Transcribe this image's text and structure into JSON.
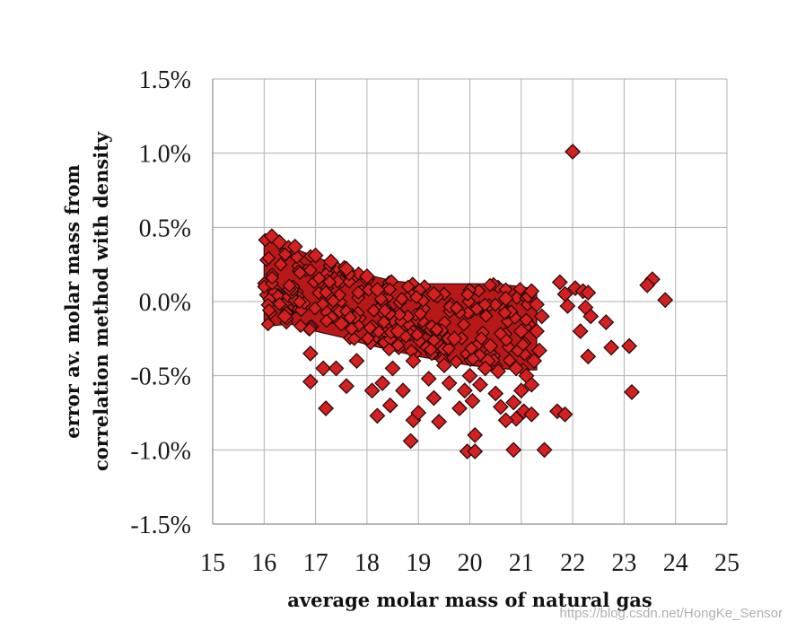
{
  "chart_data": {
    "type": "scatter",
    "title": "",
    "xlabel": "average molar mass of natural gas",
    "ylabel_lines": [
      "error av. molar mass from",
      "correlation method with density"
    ],
    "xlim": [
      15,
      25
    ],
    "ylim": [
      -1.5,
      1.5
    ],
    "x_ticks": [
      15,
      16,
      17,
      18,
      19,
      20,
      21,
      22,
      23,
      24,
      25
    ],
    "x_tick_labels": [
      "15",
      "16",
      "17",
      "18",
      "19",
      "20",
      "21",
      "22",
      "23",
      "24",
      "25"
    ],
    "y_ticks": [
      1.5,
      1.0,
      0.5,
      0.0,
      -0.5,
      -1.0,
      -1.5
    ],
    "y_tick_labels": [
      "1.5%",
      "1.0%",
      "0.5%",
      "0.0%",
      "-0.5%",
      "-1.0%",
      "-1.5%"
    ],
    "grid": true,
    "legend": "none",
    "marker": {
      "shape": "diamond",
      "fill": "#d42020",
      "edge": "#2a0a0a"
    },
    "dense_band": {
      "x_range": [
        16,
        21.3
      ],
      "upper_edge": [
        [
          16.0,
          0.43
        ],
        [
          16.5,
          0.37
        ],
        [
          17.0,
          0.3
        ],
        [
          17.5,
          0.24
        ],
        [
          18.0,
          0.18
        ],
        [
          18.5,
          0.14
        ],
        [
          19.0,
          0.12
        ],
        [
          19.5,
          0.12
        ],
        [
          20.0,
          0.12
        ],
        [
          20.5,
          0.12
        ],
        [
          21.0,
          0.1
        ],
        [
          21.3,
          0.08
        ]
      ],
      "lower_edge": [
        [
          16.0,
          -0.17
        ],
        [
          16.5,
          -0.15
        ],
        [
          17.0,
          -0.2
        ],
        [
          17.5,
          -0.24
        ],
        [
          18.0,
          -0.29
        ],
        [
          18.5,
          -0.33
        ],
        [
          19.0,
          -0.37
        ],
        [
          19.5,
          -0.4
        ],
        [
          20.0,
          -0.43
        ],
        [
          20.5,
          -0.45
        ],
        [
          21.0,
          -0.46
        ],
        [
          21.3,
          -0.46
        ]
      ]
    },
    "points": [
      [
        22.0,
        1.01
      ],
      [
        16.15,
        0.44
      ],
      [
        16.3,
        0.4
      ],
      [
        16.6,
        0.37
      ],
      [
        17.0,
        0.31
      ],
      [
        17.3,
        0.27
      ],
      [
        17.6,
        0.22
      ],
      [
        18.0,
        0.17
      ],
      [
        23.55,
        0.15
      ],
      [
        23.45,
        0.11
      ],
      [
        23.8,
        0.01
      ],
      [
        21.75,
        0.13
      ],
      [
        21.85,
        0.05
      ],
      [
        21.9,
        -0.03
      ],
      [
        22.05,
        0.09
      ],
      [
        22.2,
        0.07
      ],
      [
        22.3,
        0.06
      ],
      [
        22.25,
        -0.04
      ],
      [
        22.35,
        -0.1
      ],
      [
        22.15,
        -0.2
      ],
      [
        22.3,
        -0.37
      ],
      [
        22.65,
        -0.14
      ],
      [
        22.75,
        -0.31
      ],
      [
        23.1,
        -0.3
      ],
      [
        23.15,
        -0.61
      ],
      [
        21.2,
        0.07
      ],
      [
        21.3,
        -0.02
      ],
      [
        21.4,
        -0.1
      ],
      [
        21.3,
        -0.2
      ],
      [
        21.35,
        -0.33
      ],
      [
        21.25,
        -0.4
      ],
      [
        21.1,
        -0.5
      ],
      [
        21.0,
        -0.6
      ],
      [
        21.2,
        -0.56
      ],
      [
        20.85,
        -0.68
      ],
      [
        21.05,
        -0.74
      ],
      [
        21.2,
        -0.76
      ],
      [
        20.9,
        -0.79
      ],
      [
        21.7,
        -0.74
      ],
      [
        21.85,
        -0.76
      ],
      [
        16.9,
        -0.54
      ],
      [
        17.2,
        -0.72
      ],
      [
        17.6,
        -0.57
      ],
      [
        17.15,
        -0.45
      ],
      [
        17.4,
        -0.45
      ],
      [
        16.9,
        -0.35
      ],
      [
        18.2,
        -0.77
      ],
      [
        18.45,
        -0.7
      ],
      [
        18.1,
        -0.6
      ],
      [
        18.3,
        -0.55
      ],
      [
        18.7,
        -0.6
      ],
      [
        18.85,
        -0.94
      ],
      [
        18.9,
        -0.8
      ],
      [
        19.0,
        -0.75
      ],
      [
        19.4,
        -0.81
      ],
      [
        19.3,
        -0.65
      ],
      [
        19.6,
        -0.55
      ],
      [
        19.9,
        -0.6
      ],
      [
        20.05,
        -0.67
      ],
      [
        19.8,
        -0.72
      ],
      [
        20.2,
        -0.56
      ],
      [
        20.0,
        -0.5
      ],
      [
        20.5,
        -0.62
      ],
      [
        20.6,
        -0.71
      ],
      [
        20.7,
        -0.8
      ],
      [
        20.55,
        -0.47
      ],
      [
        20.35,
        -0.4
      ],
      [
        19.95,
        -1.01
      ],
      [
        20.1,
        -1.01
      ],
      [
        20.1,
        -0.9
      ],
      [
        20.85,
        -1.0
      ],
      [
        21.45,
        -1.0
      ],
      [
        18.5,
        -0.45
      ],
      [
        19.2,
        -0.52
      ],
      [
        17.8,
        -0.4
      ],
      [
        18.9,
        -0.4
      ],
      [
        19.5,
        -0.43
      ],
      [
        20.3,
        -0.45
      ],
      [
        20.9,
        -0.45
      ],
      [
        16.4,
        -0.1
      ],
      [
        17.5,
        -0.15
      ],
      [
        18.6,
        -0.2
      ],
      [
        19.7,
        -0.25
      ],
      [
        20.4,
        -0.3
      ],
      [
        21.0,
        -0.2
      ],
      [
        20.7,
        0.02
      ],
      [
        19.3,
        0.05
      ],
      [
        18.2,
        0.08
      ]
    ]
  },
  "watermark": "https://blog.csdn.net/HongKe_Sensor"
}
